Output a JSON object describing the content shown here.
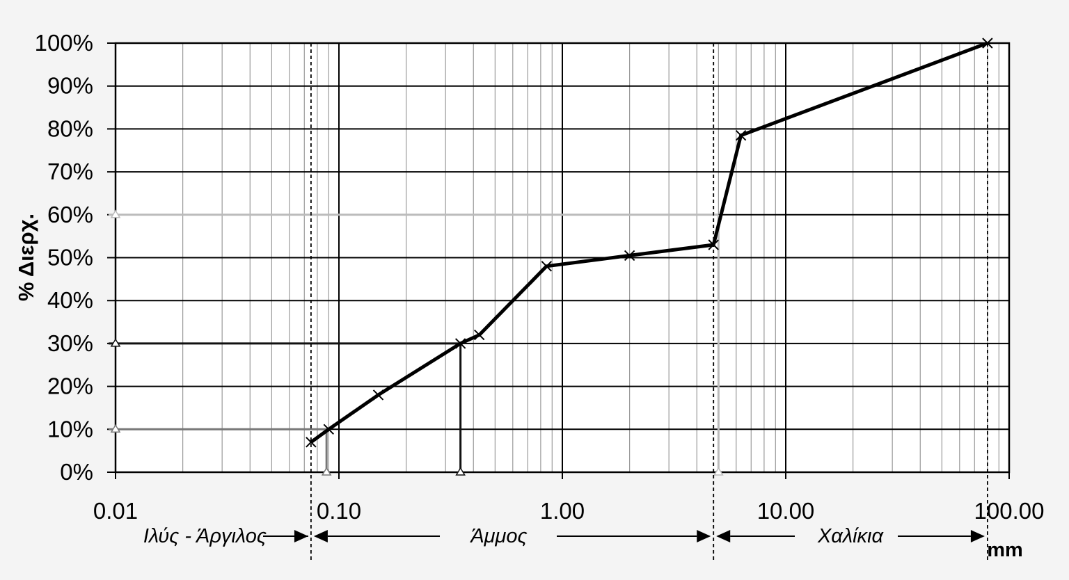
{
  "chart_data": {
    "type": "line",
    "ylabel": "% Διερχ.",
    "xunit": "mm",
    "xscale": "log",
    "xlim": [
      0.01,
      100
    ],
    "ylim": [
      0,
      100
    ],
    "grid": true,
    "x_tick_labels": [
      "0.01",
      "0.10",
      "1.00",
      "10.00",
      "100.00"
    ],
    "y_tick_labels": [
      "0%",
      "10%",
      "20%",
      "30%",
      "40%",
      "50%",
      "60%",
      "70%",
      "80%",
      "90%",
      "100%"
    ],
    "series": [
      {
        "x": [
          0.075,
          0.09,
          0.15,
          0.35,
          0.425,
          0.85,
          2.0,
          4.75,
          6.3,
          80
        ],
        "y": [
          7,
          10,
          18,
          30,
          32,
          48,
          50.5,
          53,
          78.5,
          100
        ]
      }
    ],
    "reference_lines": [
      {
        "d": 0.088,
        "percent": 10,
        "color": "#777777"
      },
      {
        "d": 0.35,
        "percent": 30,
        "color": "#111111"
      },
      {
        "d": 5.0,
        "percent": 60,
        "color": "#bbbbbb"
      }
    ],
    "boundaries": [
      0.075,
      4.75,
      80
    ],
    "zones": [
      {
        "label": "Ιλύς - Άργιλος"
      },
      {
        "label": "Άμμος"
      },
      {
        "label": "Χαλίκια"
      }
    ],
    "colors": {
      "curve": "#000000",
      "grid_major": "#000000",
      "grid_minor": "#999999"
    }
  }
}
